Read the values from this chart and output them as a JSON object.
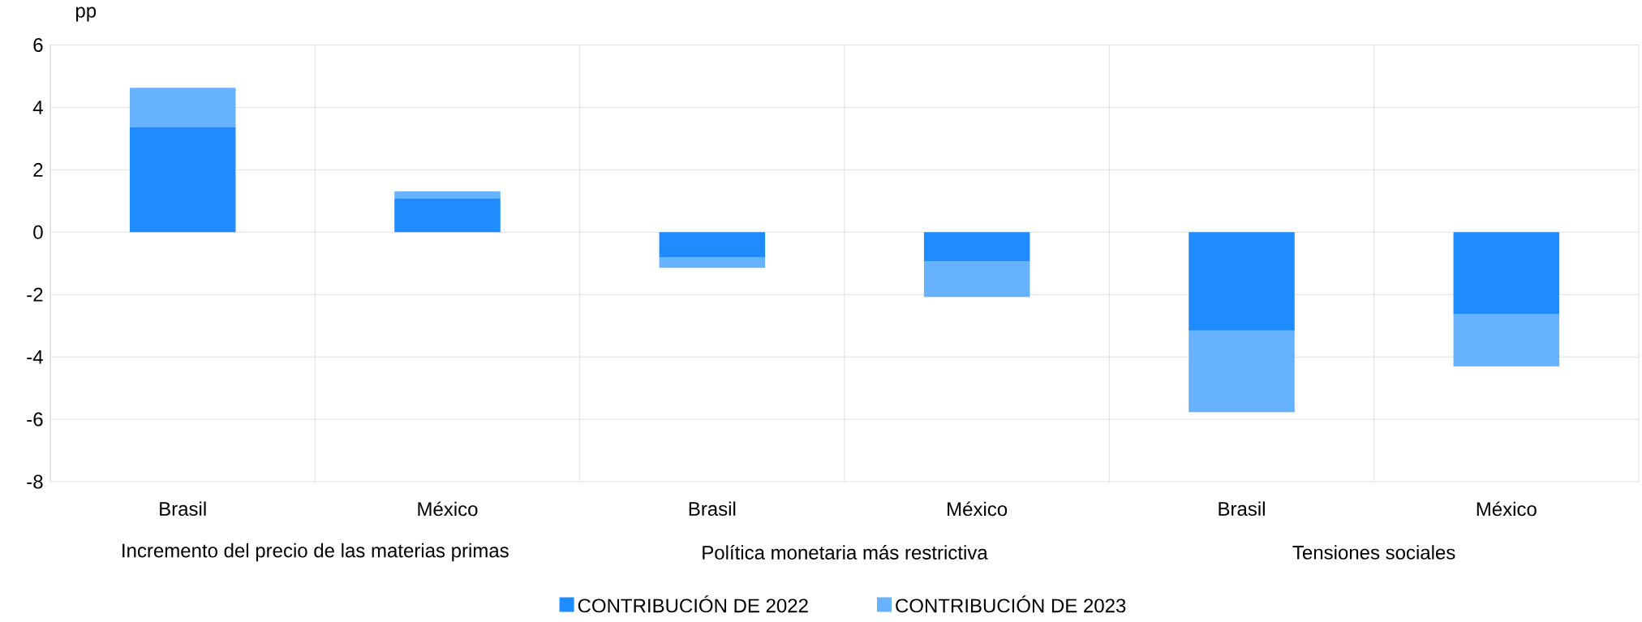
{
  "chart_data": {
    "type": "bar",
    "stacked": true,
    "ylabel": "pp",
    "categories": [
      "Brasil",
      "México",
      "Brasil",
      "México",
      "Brasil",
      "México"
    ],
    "series": [
      {
        "name": "CONTRIBUCIÓN DE 2022",
        "color": "#1e8cff",
        "values": [
          3.36,
          1.07,
          -0.81,
          -0.94,
          -3.16,
          -2.62
        ]
      },
      {
        "name": "CONTRIBUCIÓN DE 2023",
        "color": "#66b2ff",
        "values": [
          1.27,
          0.24,
          -0.33,
          -1.14,
          -2.61,
          -1.68
        ]
      }
    ],
    "annotations": [
      "Incremento del precio de las materias primas",
      "Política monetaria más restrictiva",
      "Tensiones sociales"
    ],
    "ylim": [
      -8,
      6
    ],
    "yticks": [
      -8,
      -6,
      -4,
      -2,
      0,
      2,
      4,
      6
    ],
    "grid": true,
    "legend": "bottom"
  }
}
